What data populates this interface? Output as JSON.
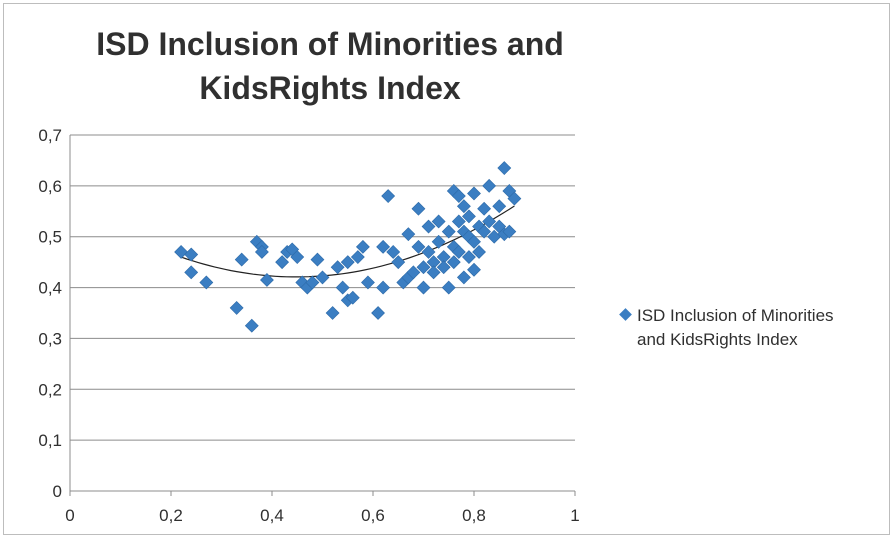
{
  "chart_data": {
    "type": "scatter",
    "title": "ISD Inclusion of Minorities and KidsRights Index",
    "title_lines": [
      "ISD Inclusion of Minorities and",
      "KidsRights Index"
    ],
    "xlim": [
      0,
      1
    ],
    "ylim": [
      0,
      0.7
    ],
    "x_ticks": [
      "0",
      "0,2",
      "0,4",
      "0,6",
      "0,8",
      "1"
    ],
    "y_ticks": [
      "0",
      "0,1",
      "0,2",
      "0,3",
      "0,4",
      "0,5",
      "0,6",
      "0,7"
    ],
    "grid": "horizontal",
    "legend_position": "right",
    "marker_color": "#3b7ec2",
    "trendline": {
      "type": "polynomial",
      "color": "#222222"
    },
    "series": [
      {
        "name": "ISD Inclusion of Minorities and KidsRights Index",
        "legend_lines": [
          "ISD Inclusion of Minorities",
          "and KidsRights Index"
        ],
        "points": [
          [
            0.22,
            0.47
          ],
          [
            0.24,
            0.465
          ],
          [
            0.24,
            0.43
          ],
          [
            0.27,
            0.41
          ],
          [
            0.33,
            0.36
          ],
          [
            0.34,
            0.455
          ],
          [
            0.36,
            0.325
          ],
          [
            0.37,
            0.49
          ],
          [
            0.38,
            0.48
          ],
          [
            0.38,
            0.47
          ],
          [
            0.39,
            0.415
          ],
          [
            0.42,
            0.45
          ],
          [
            0.43,
            0.47
          ],
          [
            0.44,
            0.475
          ],
          [
            0.45,
            0.46
          ],
          [
            0.46,
            0.41
          ],
          [
            0.47,
            0.4
          ],
          [
            0.48,
            0.41
          ],
          [
            0.49,
            0.455
          ],
          [
            0.5,
            0.42
          ],
          [
            0.52,
            0.35
          ],
          [
            0.53,
            0.44
          ],
          [
            0.54,
            0.4
          ],
          [
            0.55,
            0.45
          ],
          [
            0.55,
            0.375
          ],
          [
            0.56,
            0.38
          ],
          [
            0.57,
            0.46
          ],
          [
            0.58,
            0.48
          ],
          [
            0.59,
            0.41
          ],
          [
            0.61,
            0.35
          ],
          [
            0.62,
            0.48
          ],
          [
            0.62,
            0.4
          ],
          [
            0.63,
            0.58
          ],
          [
            0.64,
            0.47
          ],
          [
            0.65,
            0.45
          ],
          [
            0.66,
            0.41
          ],
          [
            0.67,
            0.505
          ],
          [
            0.67,
            0.42
          ],
          [
            0.68,
            0.43
          ],
          [
            0.69,
            0.555
          ],
          [
            0.69,
            0.48
          ],
          [
            0.7,
            0.4
          ],
          [
            0.7,
            0.44
          ],
          [
            0.71,
            0.52
          ],
          [
            0.71,
            0.47
          ],
          [
            0.72,
            0.45
          ],
          [
            0.72,
            0.43
          ],
          [
            0.73,
            0.53
          ],
          [
            0.73,
            0.49
          ],
          [
            0.74,
            0.46
          ],
          [
            0.74,
            0.44
          ],
          [
            0.75,
            0.4
          ],
          [
            0.75,
            0.51
          ],
          [
            0.76,
            0.59
          ],
          [
            0.76,
            0.48
          ],
          [
            0.76,
            0.45
          ],
          [
            0.77,
            0.58
          ],
          [
            0.77,
            0.53
          ],
          [
            0.77,
            0.47
          ],
          [
            0.78,
            0.56
          ],
          [
            0.78,
            0.51
          ],
          [
            0.78,
            0.42
          ],
          [
            0.79,
            0.54
          ],
          [
            0.79,
            0.5
          ],
          [
            0.79,
            0.46
          ],
          [
            0.8,
            0.435
          ],
          [
            0.8,
            0.585
          ],
          [
            0.8,
            0.49
          ],
          [
            0.81,
            0.52
          ],
          [
            0.81,
            0.47
          ],
          [
            0.82,
            0.555
          ],
          [
            0.82,
            0.51
          ],
          [
            0.83,
            0.6
          ],
          [
            0.83,
            0.53
          ],
          [
            0.84,
            0.5
          ],
          [
            0.85,
            0.56
          ],
          [
            0.85,
            0.52
          ],
          [
            0.86,
            0.635
          ],
          [
            0.86,
            0.505
          ],
          [
            0.87,
            0.59
          ],
          [
            0.87,
            0.51
          ],
          [
            0.88,
            0.575
          ]
        ]
      }
    ]
  }
}
